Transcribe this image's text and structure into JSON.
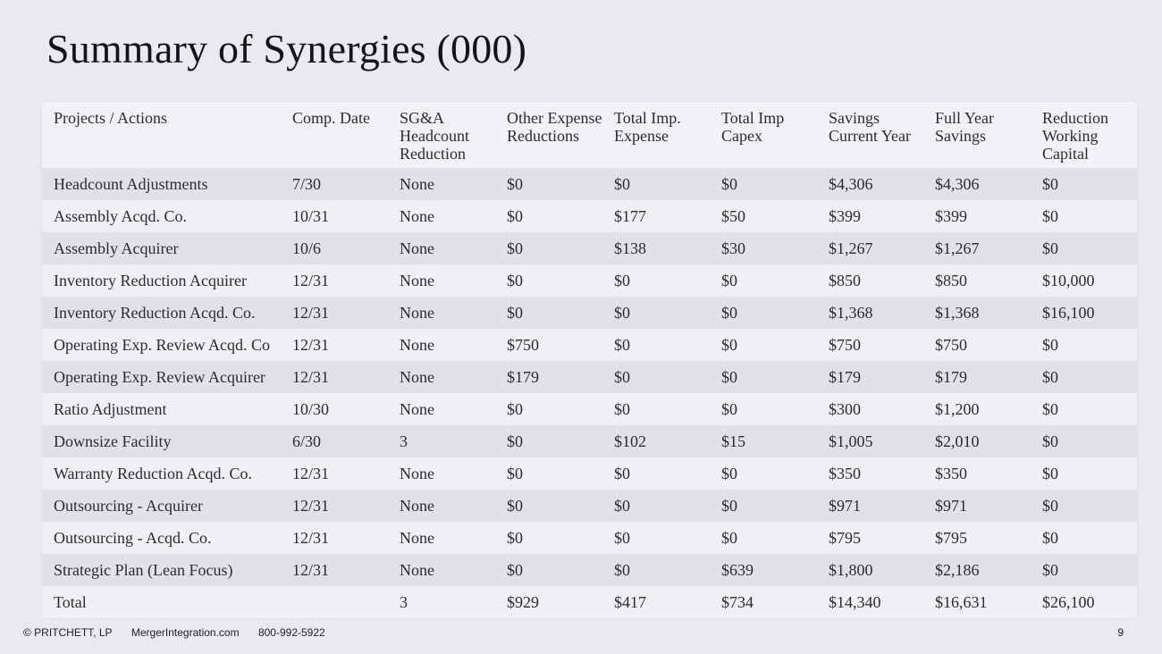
{
  "slide": {
    "title": "Summary of Synergies (000)",
    "page_number": "9"
  },
  "footer": {
    "copyright": "© PRITCHETT, LP",
    "website": "MergerIntegration.com",
    "phone": "800-992-5922"
  },
  "table": {
    "headers": [
      "Projects / Actions",
      "Comp. Date",
      "SG&A Headcount Reduction",
      "Other Expense Reductions",
      "Total Imp. Expense",
      "Total Imp Capex",
      "Savings Current Year",
      "Full Year Savings",
      "Reduction Working Capital"
    ],
    "rows": [
      [
        "Headcount Adjustments",
        "7/30",
        "None",
        "$0",
        "$0",
        "$0",
        "$4,306",
        "$4,306",
        "$0"
      ],
      [
        "Assembly Acqd. Co.",
        "10/31",
        "None",
        "$0",
        "$177",
        "$50",
        "$399",
        "$399",
        "$0"
      ],
      [
        "Assembly Acquirer",
        "10/6",
        "None",
        "$0",
        "$138",
        "$30",
        "$1,267",
        "$1,267",
        "$0"
      ],
      [
        "Inventory Reduction Acquirer",
        "12/31",
        "None",
        "$0",
        "$0",
        "$0",
        "$850",
        "$850",
        "$10,000"
      ],
      [
        "Inventory Reduction Acqd. Co.",
        "12/31",
        "None",
        "$0",
        "$0",
        "$0",
        "$1,368",
        "$1,368",
        "$16,100"
      ],
      [
        "Operating Exp. Review Acqd. Co",
        "12/31",
        "None",
        "$750",
        "$0",
        "$0",
        "$750",
        "$750",
        "$0"
      ],
      [
        "Operating Exp. Review Acquirer",
        "12/31",
        "None",
        "$179",
        "$0",
        "$0",
        "$179",
        "$179",
        "$0"
      ],
      [
        "Ratio Adjustment",
        "10/30",
        "None",
        "$0",
        "$0",
        "$0",
        "$300",
        "$1,200",
        "$0"
      ],
      [
        "Downsize Facility",
        "6/30",
        "3",
        "$0",
        "$102",
        "$15",
        "$1,005",
        "$2,010",
        "$0"
      ],
      [
        "Warranty Reduction Acqd. Co.",
        "12/31",
        "None",
        "$0",
        "$0",
        "$0",
        "$350",
        "$350",
        "$0"
      ],
      [
        "Outsourcing - Acquirer",
        "12/31",
        "None",
        "$0",
        "$0",
        "$0",
        "$971",
        "$971",
        "$0"
      ],
      [
        "Outsourcing - Acqd. Co.",
        "12/31",
        "None",
        "$0",
        "$0",
        "$0",
        "$795",
        "$795",
        "$0"
      ],
      [
        "Strategic Plan (Lean Focus)",
        "12/31",
        "None",
        "$0",
        "$0",
        "$639",
        "$1,800",
        "$2,186",
        "$0"
      ],
      [
        "Total",
        "",
        "3",
        "$929",
        "$417",
        "$734",
        "$14,340",
        "$16,631",
        "$26,100"
      ]
    ]
  }
}
